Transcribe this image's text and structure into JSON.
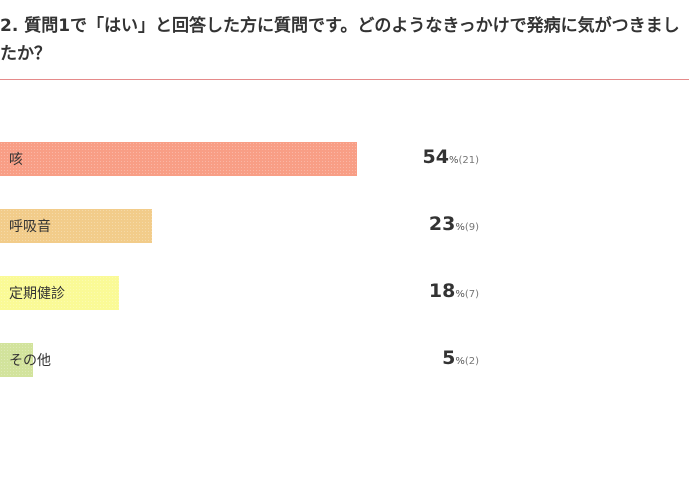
{
  "question": "2. 質問1で「はい」と回答した方に質問です。どのようなきっかけで発病に気がつきましたか？",
  "chart_data": {
    "type": "bar",
    "orientation": "horizontal",
    "unit": "%",
    "categories": [
      "咳",
      "呼吸音",
      "定期健診",
      "その他"
    ],
    "values": [
      54,
      23,
      18,
      5
    ],
    "counts": [
      "(21)",
      "(9)",
      "(7)",
      "(2)"
    ],
    "colors": [
      "#f89e85",
      "#f2cc8a",
      "#fafa96",
      "#d2e39c"
    ],
    "xlim": [
      0,
      100
    ],
    "grid": false,
    "legend": "none"
  }
}
